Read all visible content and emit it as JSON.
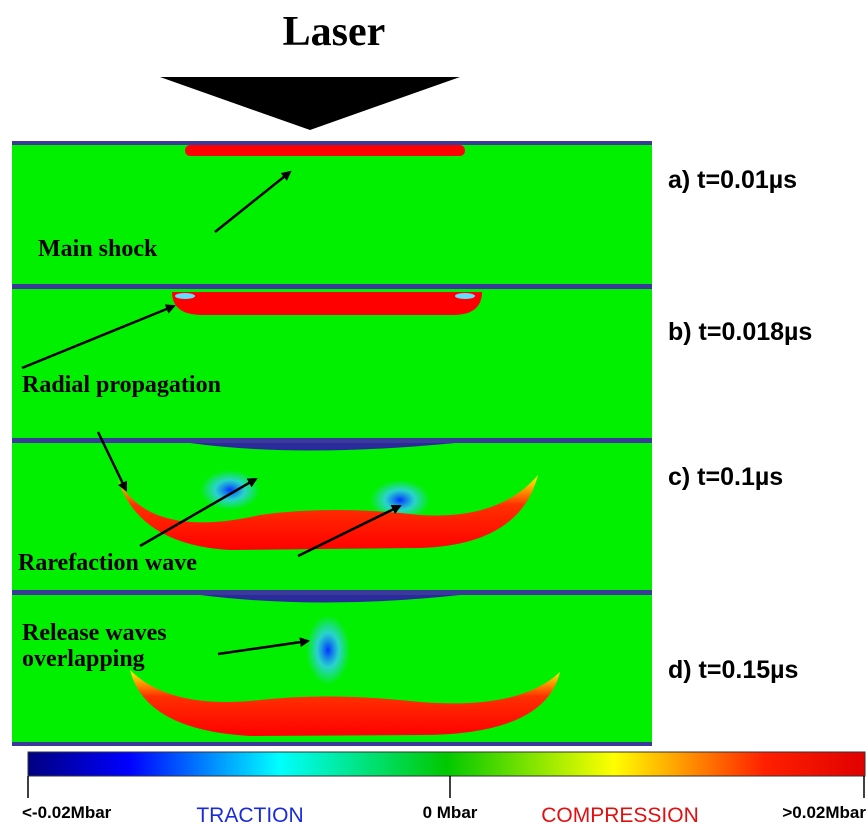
{
  "title": "Laser",
  "panels": [
    {
      "label": "a) t=0.01µs"
    },
    {
      "label": "b) t=0.018µs"
    },
    {
      "label": "c) t=0.1µs"
    },
    {
      "label": "d) t=0.15µs"
    }
  ],
  "annotations": {
    "main_shock": "Main shock",
    "radial_propagation": "Radial propagation",
    "rarefaction_wave": "Rarefaction wave",
    "release_waves": [
      "Release waves",
      "overlapping"
    ]
  },
  "colorbar": {
    "min_label": "<-0.02Mbar",
    "mid_label": "0 Mbar",
    "max_label": ">0.02Mbar",
    "left_caption": "TRACTION",
    "right_caption": "COMPRESSION"
  }
}
